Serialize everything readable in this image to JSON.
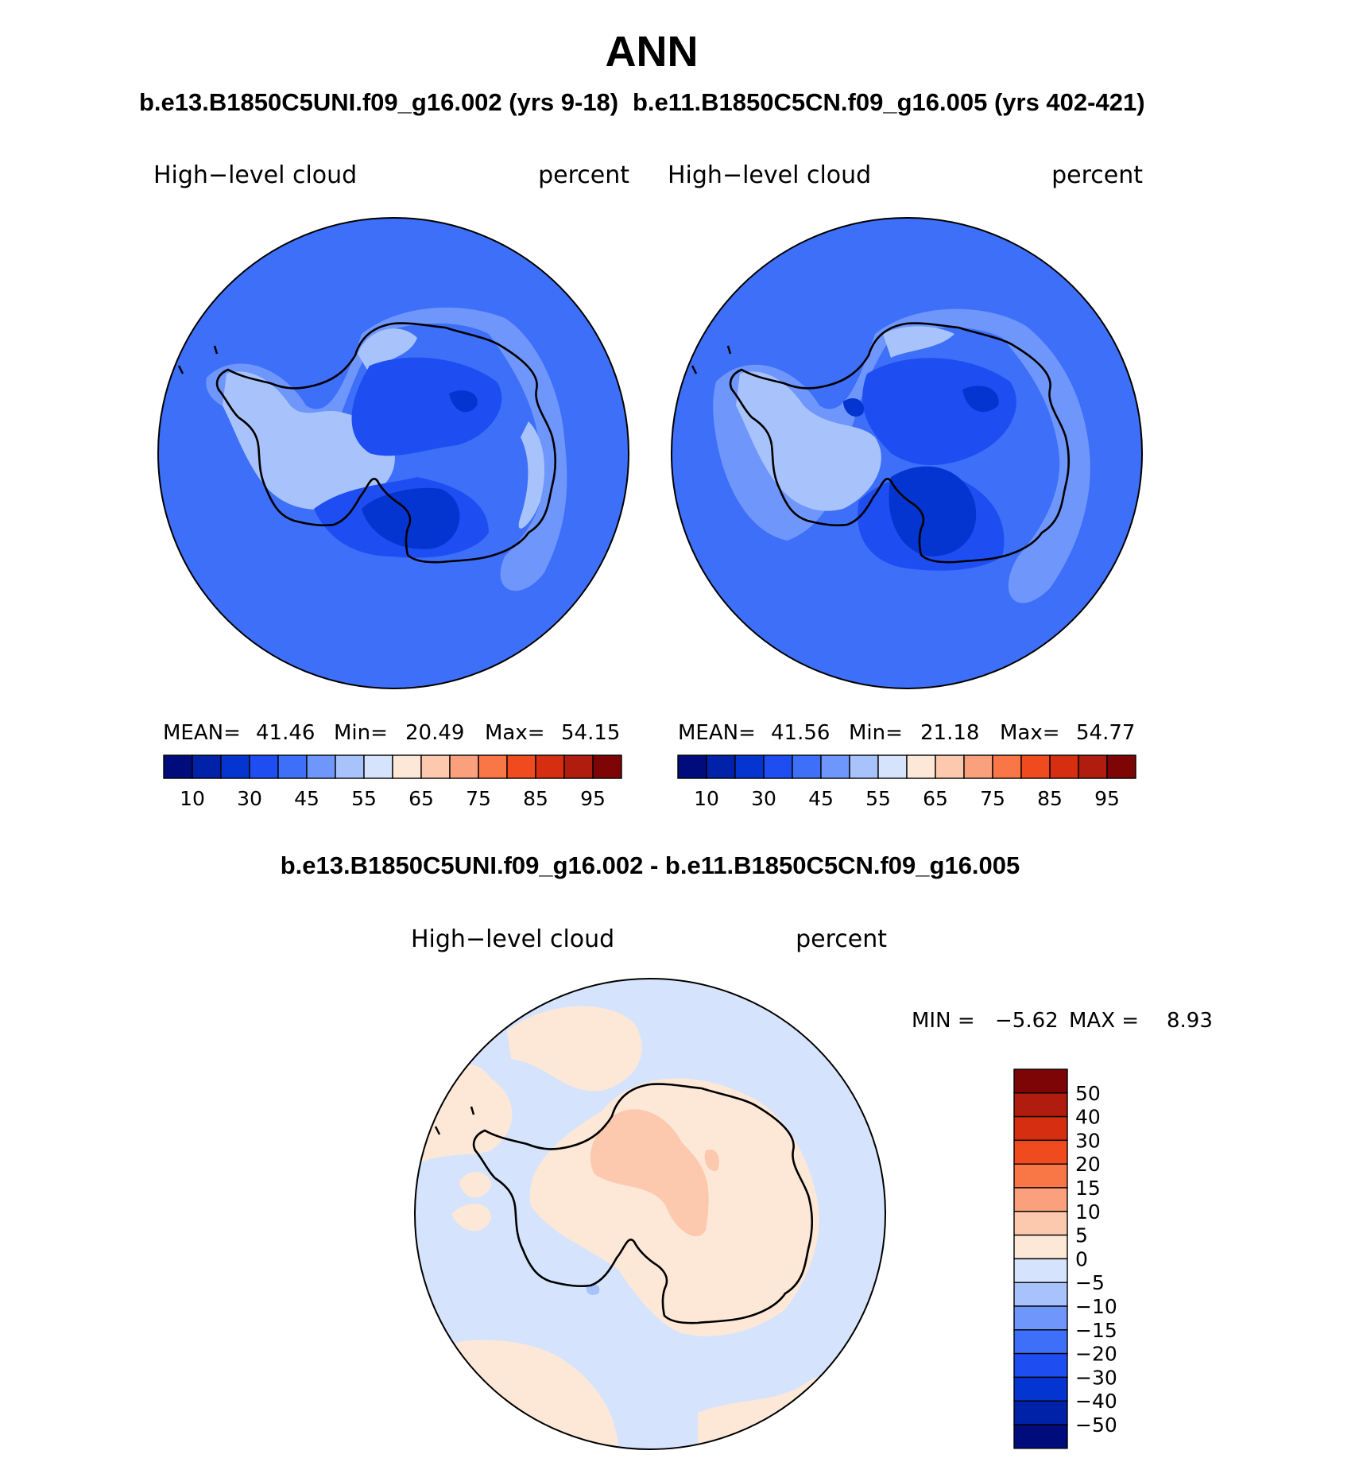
{
  "page": {
    "title": "ANN",
    "case_labels": [
      "b.e13.B1850C5UNI.f09_g16.002 (yrs 9-18)",
      "b.e11.B1850C5CN.f09_g16.005 (yrs 402-421)"
    ],
    "diff_title": "b.e13.B1850C5UNI.f09_g16.002 - b.e11.B1850C5CN.f09_g16.005"
  },
  "panels": [
    {
      "variable": "High−level cloud",
      "units": "percent",
      "stats": {
        "mean_label": "MEAN=",
        "mean": "41.46",
        "min_label": "Min=",
        "min": "20.49",
        "max_label": "Max=",
        "max": "54.15"
      }
    },
    {
      "variable": "High−level cloud",
      "units": "percent",
      "stats": {
        "mean_label": "MEAN=",
        "mean": "41.56",
        "min_label": "Min=",
        "min": "21.18",
        "max_label": "Max=",
        "max": "54.77"
      }
    }
  ],
  "abs_colorbar": {
    "colors": [
      "#000c7c",
      "#0022a8",
      "#0535d0",
      "#1e4ef2",
      "#3e6ff8",
      "#6f97fb",
      "#a8c3fc",
      "#d5e4fc",
      "#fde8d8",
      "#fcc9ae",
      "#fba07c",
      "#f97646",
      "#f04a1f",
      "#d62e10",
      "#b01c0e",
      "#7d0505"
    ],
    "labels": [
      "10",
      "30",
      "45",
      "55",
      "65",
      "75",
      "85",
      "95"
    ]
  },
  "diff_panel": {
    "variable": "High−level cloud",
    "units": "percent",
    "min_label": "MIN =",
    "min": "−5.62",
    "max_label": "MAX =",
    "max": "8.93"
  },
  "diff_colorbar": {
    "colors": [
      "#7d0505",
      "#b01c0e",
      "#d62e10",
      "#f04a1f",
      "#f97646",
      "#fba07c",
      "#fcc9ae",
      "#fde8d8",
      "#d5e4fc",
      "#a8c3fc",
      "#6f97fb",
      "#3e6ff8",
      "#1e4ef2",
      "#0535d0",
      "#0022a8",
      "#000c7c"
    ],
    "labels": [
      "50",
      "40",
      "30",
      "20",
      "15",
      "10",
      "5",
      "0",
      "−5",
      "−10",
      "−15",
      "−20",
      "−30",
      "−40",
      "−50"
    ]
  },
  "map_colors": {
    "ocean_abs": "#3e6ff8",
    "mid_abs": "#6f97fb",
    "light_abs": "#a8c3fc",
    "dark_abs": "#1e4ef2",
    "darker_abs": "#0535d0",
    "diff_neg": "#d5e4fc",
    "diff_pos": "#fde8d8",
    "diff_pos2": "#fcc9ae",
    "diff_neg2": "#a8c3fc"
  }
}
